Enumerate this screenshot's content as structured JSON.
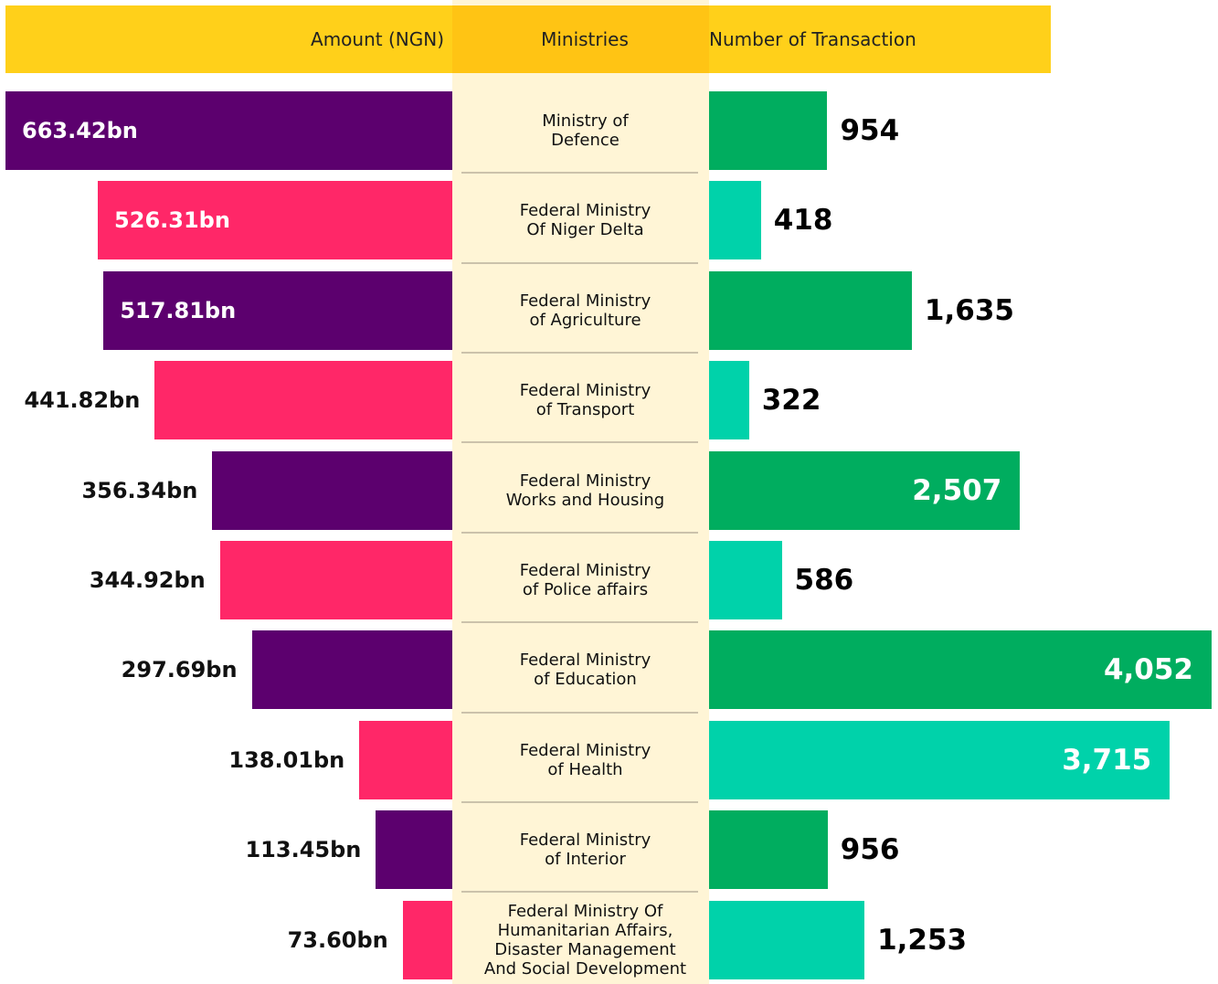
{
  "chart_data": {
    "type": "butterfly",
    "headers": {
      "left": "Amount (NGN)",
      "middle": "Ministries",
      "right": "Number of Transaction"
    },
    "categories": [
      "Ministry of\nDefence",
      "Federal Ministry\nOf Niger Delta",
      "Federal Ministry\nof Agriculture",
      "Federal Ministry\nof Transport",
      "Federal Ministry\nWorks and Housing",
      "Federal Ministry\nof Police affairs",
      "Federal Ministry\nof Education",
      "Federal Ministry\nof Health",
      "Federal Ministry\nof Interior",
      "Federal Ministry Of\nHumanitarian Affairs,\nDisaster Management\nAnd Social Development"
    ],
    "series": [
      {
        "name": "Amount (NGN)",
        "colors": [
          "#5c006e",
          "#ff2768"
        ],
        "values": [
          663.42,
          526.31,
          517.81,
          441.82,
          356.34,
          344.92,
          297.69,
          138.01,
          113.45,
          73.6
        ],
        "value_labels": [
          "663.42bn",
          "526.31bn",
          "517.81bn",
          "441.82bn",
          "356.34bn",
          "344.92bn",
          "297.69bn",
          "138.01bn",
          "113.45bn",
          "73.60bn"
        ]
      },
      {
        "name": "Number of Transaction",
        "colors": [
          "#00ad5f",
          "#00d2aa"
        ],
        "values": [
          954,
          418,
          1635,
          322,
          2507,
          586,
          4052,
          3715,
          956,
          1253
        ],
        "value_labels": [
          "954",
          "418",
          "1,635",
          "322",
          "2,507",
          "586",
          "4,052",
          "3,715",
          "956",
          "1,253"
        ]
      }
    ]
  }
}
